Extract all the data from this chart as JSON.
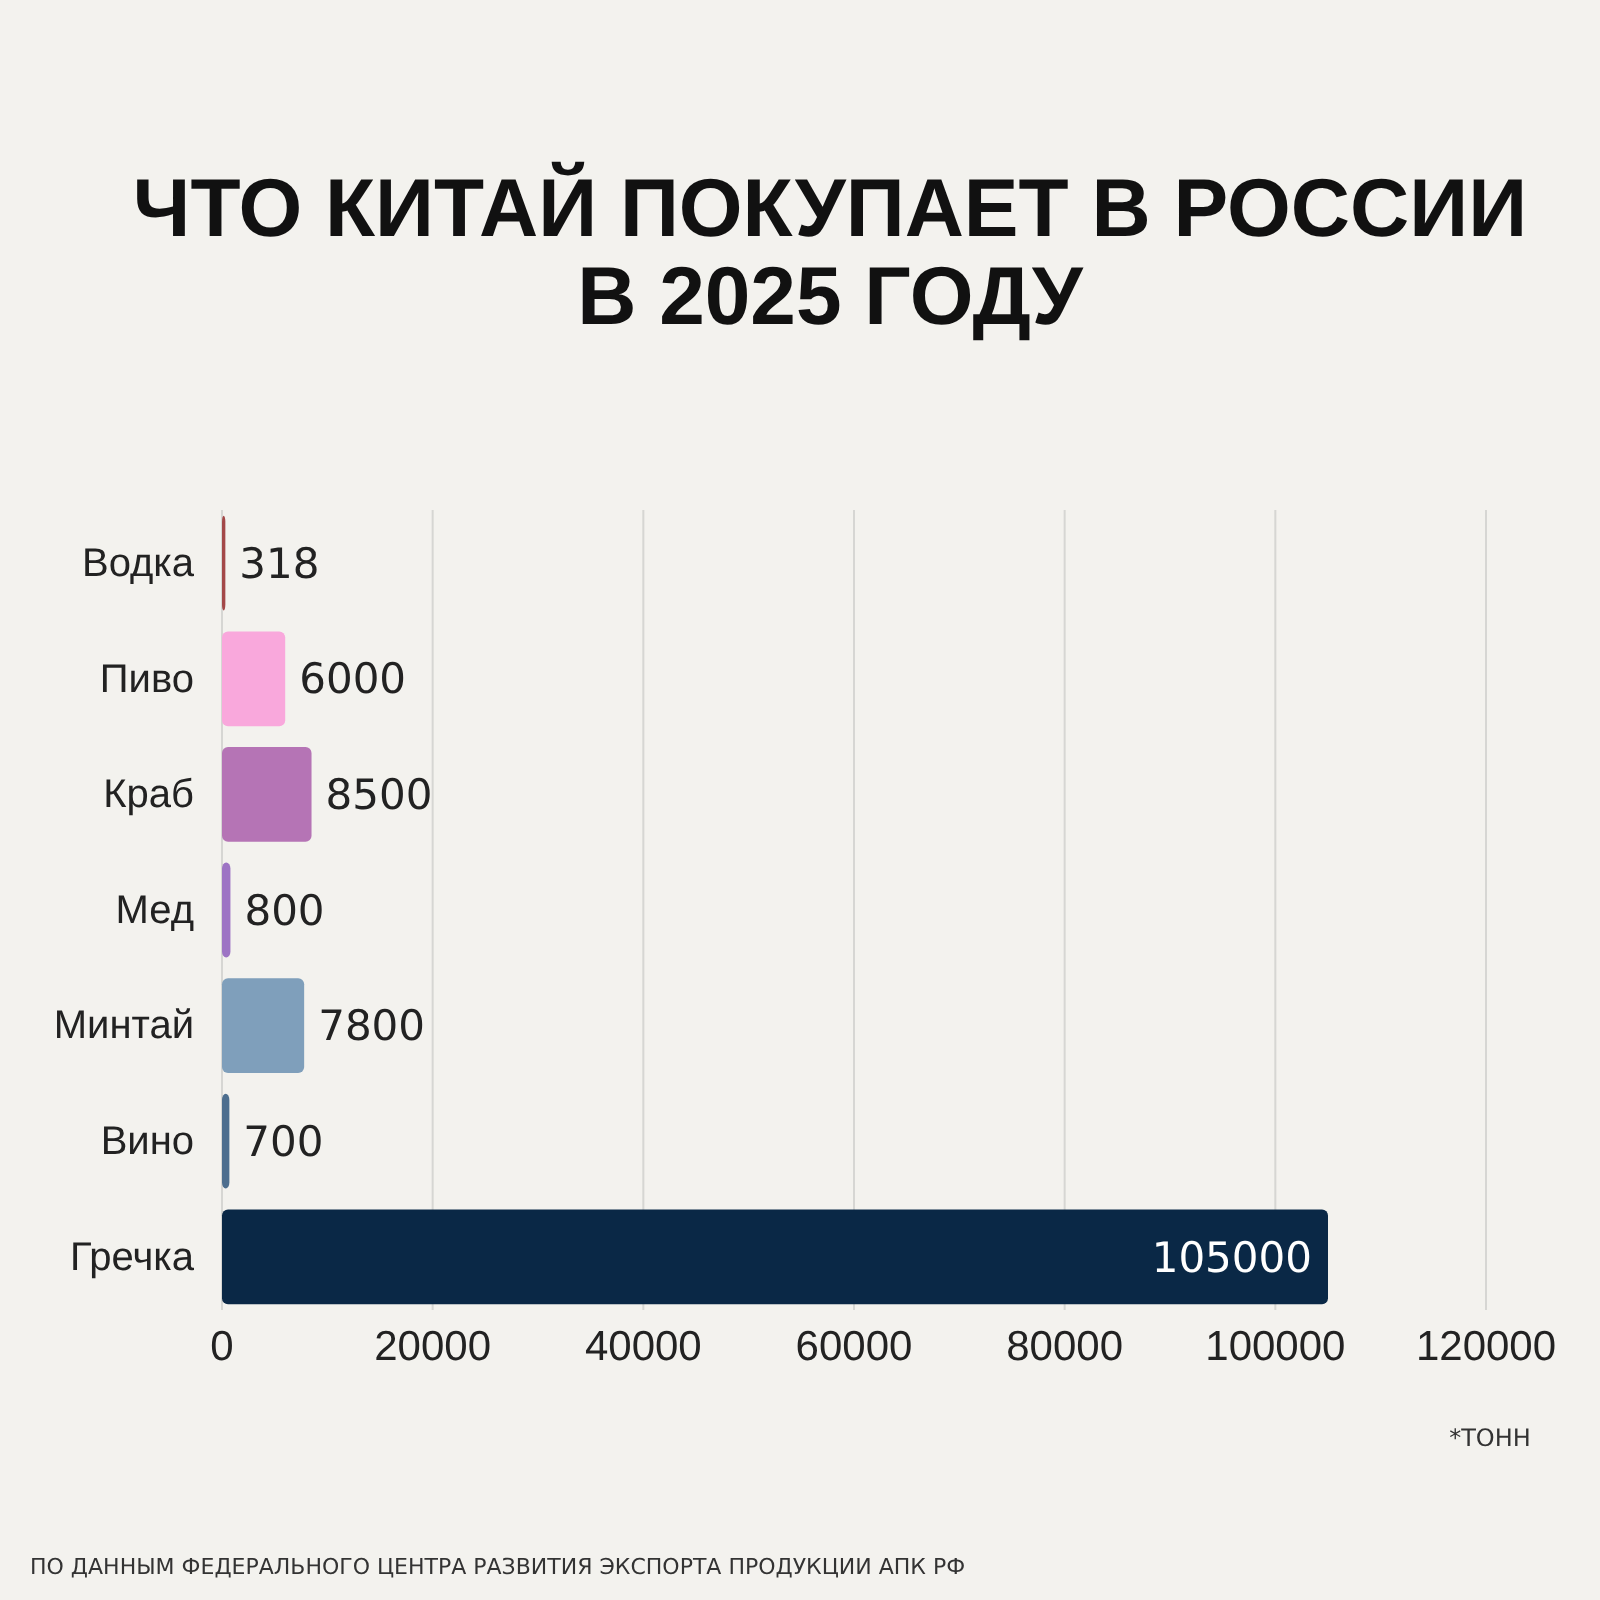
{
  "chart_data": {
    "type": "bar",
    "orientation": "horizontal",
    "title": "ЧТО КИТАЙ ПОКУПАЕТ В РОССИИ\nВ 2025 ГОДУ",
    "categories": [
      "Водка",
      "Пиво",
      "Краб",
      "Мед",
      "Минтай",
      "Вино",
      "Гречка"
    ],
    "values": [
      318,
      6000,
      8500,
      800,
      7800,
      700,
      105000
    ],
    "colors": [
      "#a34848",
      "#f9a8dc",
      "#b574b5",
      "#9d74c4",
      "#7f9fbb",
      "#4d6e8e",
      "#0a2846"
    ],
    "xlim": [
      0,
      120000
    ],
    "xticks": [
      0,
      20000,
      40000,
      60000,
      80000,
      100000,
      120000
    ],
    "grid": "x",
    "data_labels": true,
    "annotations": [
      "*ТОНН",
      "ПО ДАННЫМ ФЕДЕРАЛЬНОГО ЦЕНТРА РАЗВИТИЯ ЭКСПОРТА ПРОДУКЦИИ АПК РФ"
    ]
  }
}
